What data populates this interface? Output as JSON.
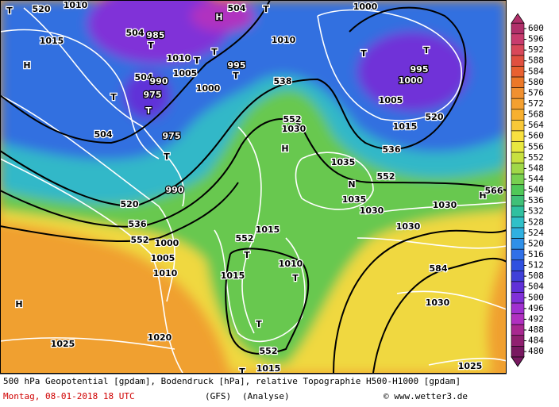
{
  "map": {
    "labels": [
      "520",
      "1010",
      "1015",
      "H",
      "T",
      "504",
      "985",
      "T",
      "H",
      "504",
      "T",
      "1010",
      "T",
      "1005",
      "T",
      "1000",
      "995",
      "T",
      "504",
      "990",
      "T",
      "975",
      "T",
      "504",
      "975",
      "T",
      "538",
      "1010",
      "1000",
      "T",
      "T",
      "1000",
      "995",
      "1005",
      "520",
      "1015",
      "536",
      "552",
      "1030",
      "H",
      "1035",
      "552",
      "N",
      "1035",
      "1030",
      "1030",
      "H",
      "566",
      "520",
      "990",
      "536",
      "552",
      "1015",
      "552",
      "T",
      "1010",
      "T",
      "1015",
      "T",
      "552",
      "T",
      "1015",
      "1030",
      "584",
      "1030",
      "H",
      "1025",
      "1020",
      "1025",
      "1005",
      "1010",
      "1000"
    ]
  },
  "colorbar": {
    "labels": [
      600,
      596,
      592,
      588,
      584,
      580,
      576,
      572,
      568,
      564,
      560,
      556,
      552,
      548,
      544,
      540,
      536,
      532,
      528,
      524,
      520,
      516,
      512,
      508,
      504,
      500,
      496,
      492,
      488,
      484,
      480
    ],
    "colors": [
      "#b0306a",
      "#c83c6e",
      "#d8485a",
      "#e05040",
      "#e86030",
      "#ec7828",
      "#f09030",
      "#f4a030",
      "#f8b030",
      "#f8c838",
      "#f8e040",
      "#e8e840",
      "#c8e040",
      "#a0d848",
      "#78d050",
      "#50c858",
      "#40c078",
      "#30c0a0",
      "#30c0c8",
      "#30b0e0",
      "#3090e8",
      "#3070e8",
      "#3050e0",
      "#4040d8",
      "#6030d8",
      "#8030d8",
      "#a030d0",
      "#b030c0",
      "#a82890",
      "#902070",
      "#781860"
    ]
  },
  "footer": {
    "description": "500 hPa Geopotential [gpdam], Bodendruck [hPa], relative Topographie H500-H1000 [gpdam]",
    "date": "Montag, 08-01-2018  18 UTC",
    "model": "(GFS)",
    "run": "(Analyse)",
    "credit": "© www.wetter3.de"
  }
}
